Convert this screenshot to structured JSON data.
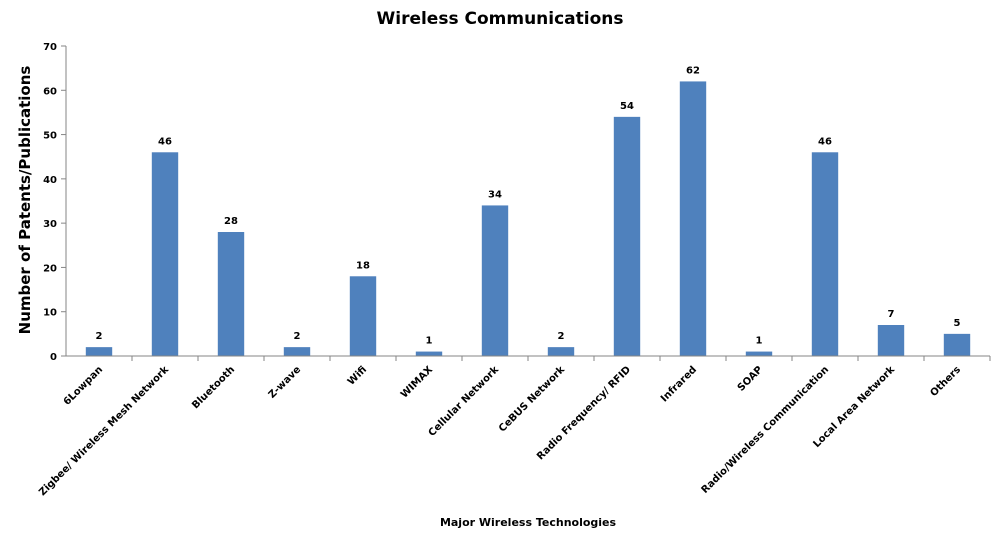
{
  "chart_data": {
    "type": "bar",
    "title": "Wireless Communications",
    "xlabel": "Major Wireless Technologies",
    "ylabel": "Number of Patents/Publications",
    "ylim": [
      0,
      70
    ],
    "yticks": [
      "0",
      "10",
      "20",
      "30",
      "40",
      "50",
      "60",
      "70"
    ],
    "grid": false,
    "legend": "none",
    "bar_color": "#4F81BD",
    "categories": [
      "6Lowpan",
      "Zigbee/ Wireless Mesh Network",
      "Bluetooth",
      "Z-wave",
      "Wifi",
      "WIMAX",
      "Cellular Network",
      "CeBUS Network",
      "Radio Frequency/ RFID",
      "Infrared",
      "SOAP",
      "Radio/Wireless Communication",
      "Local Area Network",
      "Others"
    ],
    "values": [
      2,
      46,
      28,
      2,
      18,
      1,
      34,
      2,
      54,
      62,
      1,
      46,
      7,
      5
    ],
    "data_labels": [
      "2",
      "46",
      "28",
      "2",
      "18",
      "1",
      "34",
      "2",
      "54",
      "62",
      "1",
      "46",
      "7",
      "5"
    ]
  }
}
